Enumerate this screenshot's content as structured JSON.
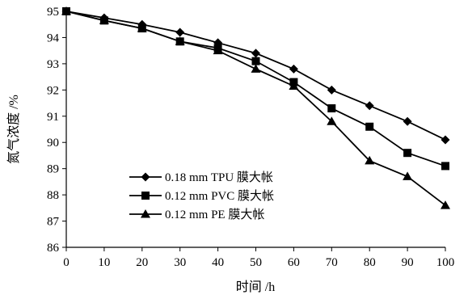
{
  "chart_data": {
    "type": "line",
    "xlabel": "时间 /h",
    "ylabel": "氮气浓度 /%",
    "x": [
      0,
      10,
      20,
      30,
      40,
      50,
      60,
      70,
      80,
      90,
      100
    ],
    "xlim": [
      0,
      100
    ],
    "ylim": [
      86,
      95
    ],
    "xticks": [
      "0",
      "10",
      "20",
      "30",
      "40",
      "50",
      "60",
      "70",
      "80",
      "90",
      "100"
    ],
    "yticks": [
      "86",
      "87",
      "88",
      "89",
      "90",
      "91",
      "92",
      "93",
      "94",
      "95"
    ],
    "grid": false,
    "legend_position": "bottom-left",
    "series": [
      {
        "name": "0.18 mm TPU 膜大帐",
        "marker": "diamond",
        "values": [
          95.0,
          94.75,
          94.5,
          94.2,
          93.8,
          93.4,
          92.8,
          92.0,
          91.4,
          90.8,
          90.1
        ]
      },
      {
        "name": "0.12 mm PVC 膜大帐",
        "marker": "square",
        "values": [
          95.0,
          94.65,
          94.35,
          93.85,
          93.6,
          93.1,
          92.3,
          91.3,
          90.6,
          89.6,
          89.1
        ]
      },
      {
        "name": "0.12 mm PE 膜大帐",
        "marker": "triangle",
        "values": [
          95.0,
          94.65,
          94.35,
          93.85,
          93.5,
          92.8,
          92.15,
          90.8,
          89.3,
          88.7,
          87.6
        ]
      }
    ]
  }
}
